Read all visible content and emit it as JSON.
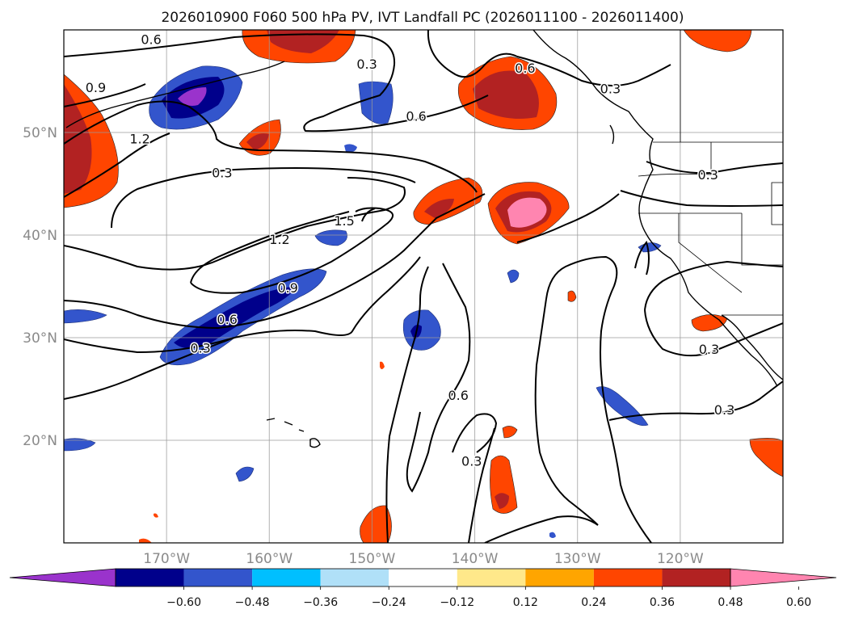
{
  "title": "2026010900 F060 500 hPa PV, IVT Landfall PC (2026011100 - 2026011400)",
  "map": {
    "lon_range": [
      -180,
      -110
    ],
    "lat_range": [
      10,
      60
    ],
    "lon_ticks": [
      {
        "value": -170,
        "label": "170°W"
      },
      {
        "value": -160,
        "label": "160°W"
      },
      {
        "value": -150,
        "label": "150°W"
      },
      {
        "value": -140,
        "label": "140°W"
      },
      {
        "value": -130,
        "label": "130°W"
      },
      {
        "value": -120,
        "label": "120°W"
      }
    ],
    "lat_ticks": [
      {
        "value": 20,
        "label": "20°N"
      },
      {
        "value": 30,
        "label": "30°N"
      },
      {
        "value": 40,
        "label": "40°N"
      },
      {
        "value": 50,
        "label": "50°N"
      }
    ],
    "gridlines": true
  },
  "contours": {
    "variable": "500 hPa PV",
    "levels": [
      0.3,
      0.6,
      0.9,
      1.2,
      1.5
    ],
    "labels": [
      {
        "text": "0.6",
        "lon": -171.5,
        "lat": 59.1
      },
      {
        "text": "0.3",
        "lon": -150.5,
        "lat": 56.7
      },
      {
        "text": "0.9",
        "lon": -176.9,
        "lat": 54.4
      },
      {
        "text": "1.2",
        "lon": -172.6,
        "lat": 49.4
      },
      {
        "text": "0.3",
        "lon": -164.6,
        "lat": 46.1
      },
      {
        "text": "0.6",
        "lon": -135.1,
        "lat": 56.3
      },
      {
        "text": "0.3",
        "lon": -126.8,
        "lat": 54.3
      },
      {
        "text": "0.6",
        "lon": -145.7,
        "lat": 51.6
      },
      {
        "text": "1.5",
        "lon": -152.7,
        "lat": 41.4
      },
      {
        "text": "1.2",
        "lon": -159.0,
        "lat": 39.6
      },
      {
        "text": "0.9",
        "lon": -158.2,
        "lat": 34.9
      },
      {
        "text": "0.6",
        "lon": -164.1,
        "lat": 31.8
      },
      {
        "text": "0.3",
        "lon": -166.7,
        "lat": 29.0
      },
      {
        "text": "0.3",
        "lon": -117.3,
        "lat": 45.9
      },
      {
        "text": "0.3",
        "lon": -117.2,
        "lat": 28.9
      },
      {
        "text": "0.3",
        "lon": -115.7,
        "lat": 23.0
      },
      {
        "text": "0.6",
        "lon": -141.6,
        "lat": 24.4
      },
      {
        "text": "0.3",
        "lon": -140.3,
        "lat": 18.0
      }
    ]
  },
  "colorbar": {
    "variable": "IVT Landfall PC",
    "extend": "both",
    "tick_labels": [
      "−0.60",
      "−0.48",
      "−0.36",
      "−0.24",
      "−0.12",
      "0.12",
      "0.24",
      "0.36",
      "0.48",
      "0.60"
    ],
    "colors": [
      "#9a33cc",
      "#00008b",
      "#3355cc",
      "#00bfff",
      "#b0e0f8",
      "#ffffff",
      "#ffe88a",
      "#ffa500",
      "#ff4500",
      "#b22222",
      "#ff85b0"
    ]
  }
}
